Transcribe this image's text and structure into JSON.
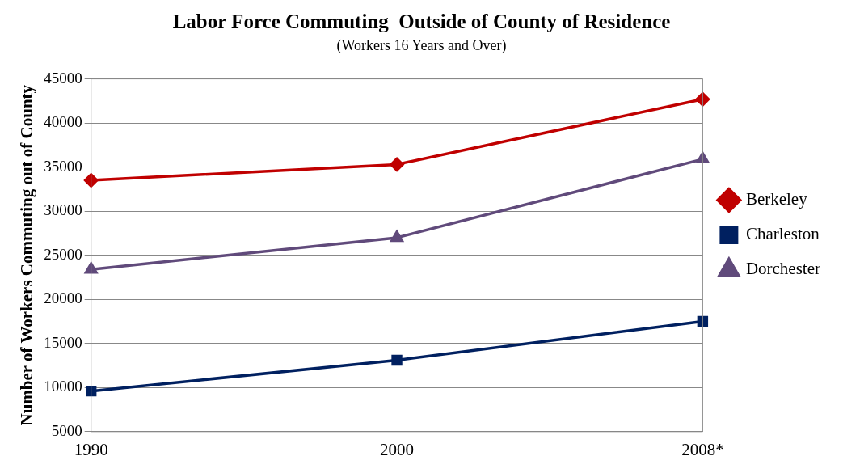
{
  "chart_data": {
    "type": "line",
    "title": "Labor Force Commuting  Outside of County of Residence",
    "subtitle": "(Workers 16 Years and Over)",
    "ylabel": "Number of Workers Commuting out of County",
    "categories": [
      "1990",
      "2000",
      "2008*"
    ],
    "series": [
      {
        "name": "Berkeley",
        "color": "#c00000",
        "marker": "diamond",
        "values": [
          33500,
          35300,
          42700
        ]
      },
      {
        "name": "Charleston",
        "color": "#002060",
        "marker": "square",
        "values": [
          9600,
          13100,
          17500
        ]
      },
      {
        "name": "Dorchester",
        "color": "#604a7b",
        "marker": "triangle",
        "values": [
          23400,
          27000,
          35900
        ]
      }
    ],
    "ylim": [
      5000,
      45000
    ],
    "yticks": [
      5000,
      10000,
      15000,
      20000,
      25000,
      30000,
      35000,
      40000,
      45000
    ],
    "grid": "y",
    "legend": "right",
    "line_style": "solid"
  }
}
